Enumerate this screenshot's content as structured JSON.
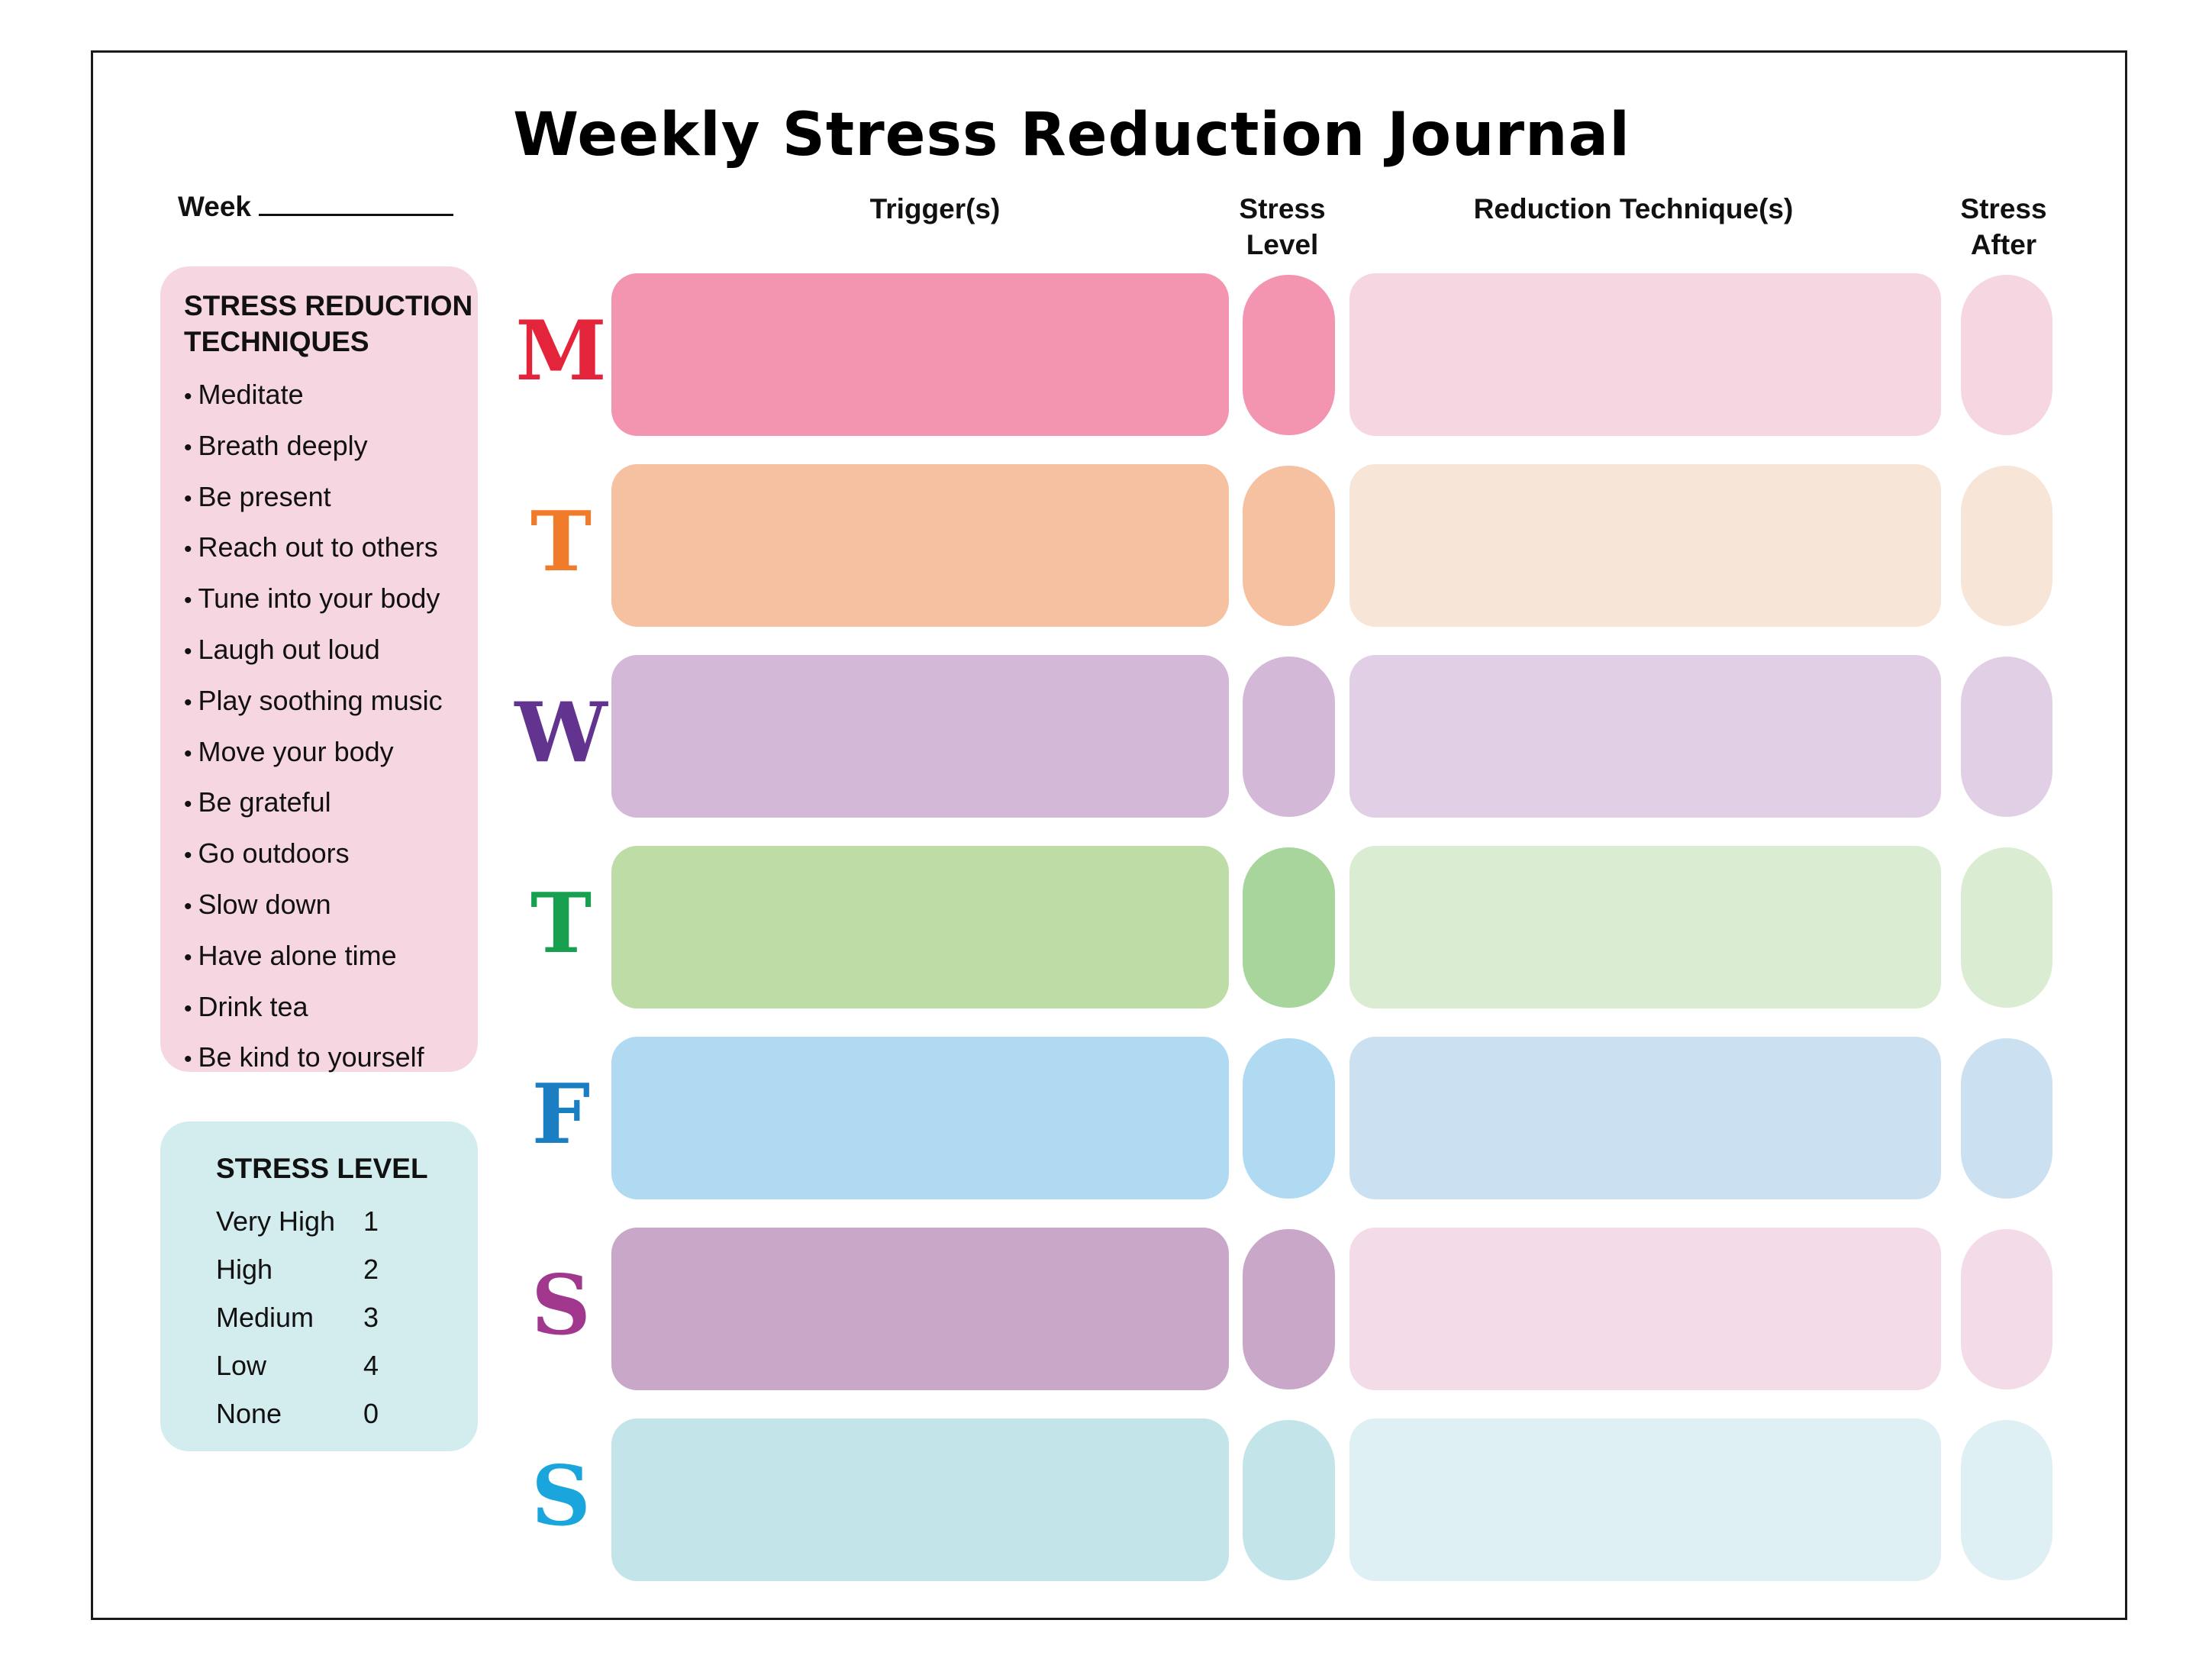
{
  "title": "Weekly Stress Reduction Journal",
  "week_label": "Week",
  "columns": {
    "triggers": "Trigger(s)",
    "stress_level_line1": "Stress",
    "stress_level_line2": "Level",
    "techniques": "Reduction Technique(s)",
    "stress_after_line1": "Stress",
    "stress_after_line2": "After"
  },
  "techniques_panel": {
    "title_line1": "STRESS REDUCTION",
    "title_line2": "TECHNIQUES",
    "items": [
      "Meditate",
      "Breath deeply",
      "Be present",
      "Reach out to others",
      "Tune into your body",
      "Laugh out loud",
      "Play soothing music",
      "Move your body",
      "Be grateful",
      "Go outdoors",
      "Slow down",
      "Have alone time",
      "Drink tea",
      "Be kind to yourself"
    ]
  },
  "stress_level_panel": {
    "title": "STRESS LEVEL",
    "levels": [
      {
        "name": "Very High",
        "value": "1"
      },
      {
        "name": "High",
        "value": "2"
      },
      {
        "name": "Medium",
        "value": "3"
      },
      {
        "name": "Low",
        "value": "4"
      },
      {
        "name": "None",
        "value": "0"
      }
    ]
  },
  "days": [
    {
      "letter": "M",
      "letter_color": "#e4243b",
      "trigger_color": "#f395b1",
      "level_color": "#f395b1",
      "technique_color": "#f6d6e1",
      "after_color": "#f6d6e1"
    },
    {
      "letter": "T",
      "letter_color": "#f07b2a",
      "trigger_color": "#f5c1a0",
      "level_color": "#f5c1a0",
      "technique_color": "#f7e5d8",
      "after_color": "#f7e5d8"
    },
    {
      "letter": "W",
      "letter_color": "#62348f",
      "trigger_color": "#d4b8d8",
      "level_color": "#d4b8d8",
      "technique_color": "#e1cfe5",
      "after_color": "#e1cfe5"
    },
    {
      "letter": "T",
      "letter_color": "#17a04f",
      "trigger_color": "#bedca6",
      "level_color": "#a8d59c",
      "technique_color": "#daedd2",
      "after_color": "#daedd2"
    },
    {
      "letter": "F",
      "letter_color": "#1b7dc2",
      "trigger_color": "#b0daf2",
      "level_color": "#b0daf2",
      "technique_color": "#cbe1f1",
      "after_color": "#cbe1f1"
    },
    {
      "letter": "S",
      "letter_color": "#a1388e",
      "trigger_color": "#c9a7c8",
      "level_color": "#c9a7c8",
      "technique_color": "#f3dbe8",
      "after_color": "#f3dbe8"
    },
    {
      "letter": "S",
      "letter_color": "#1aa6dc",
      "trigger_color": "#c3e5ea",
      "level_color": "#c3e5ea",
      "technique_color": "#dff0f5",
      "after_color": "#dff0f5"
    }
  ]
}
